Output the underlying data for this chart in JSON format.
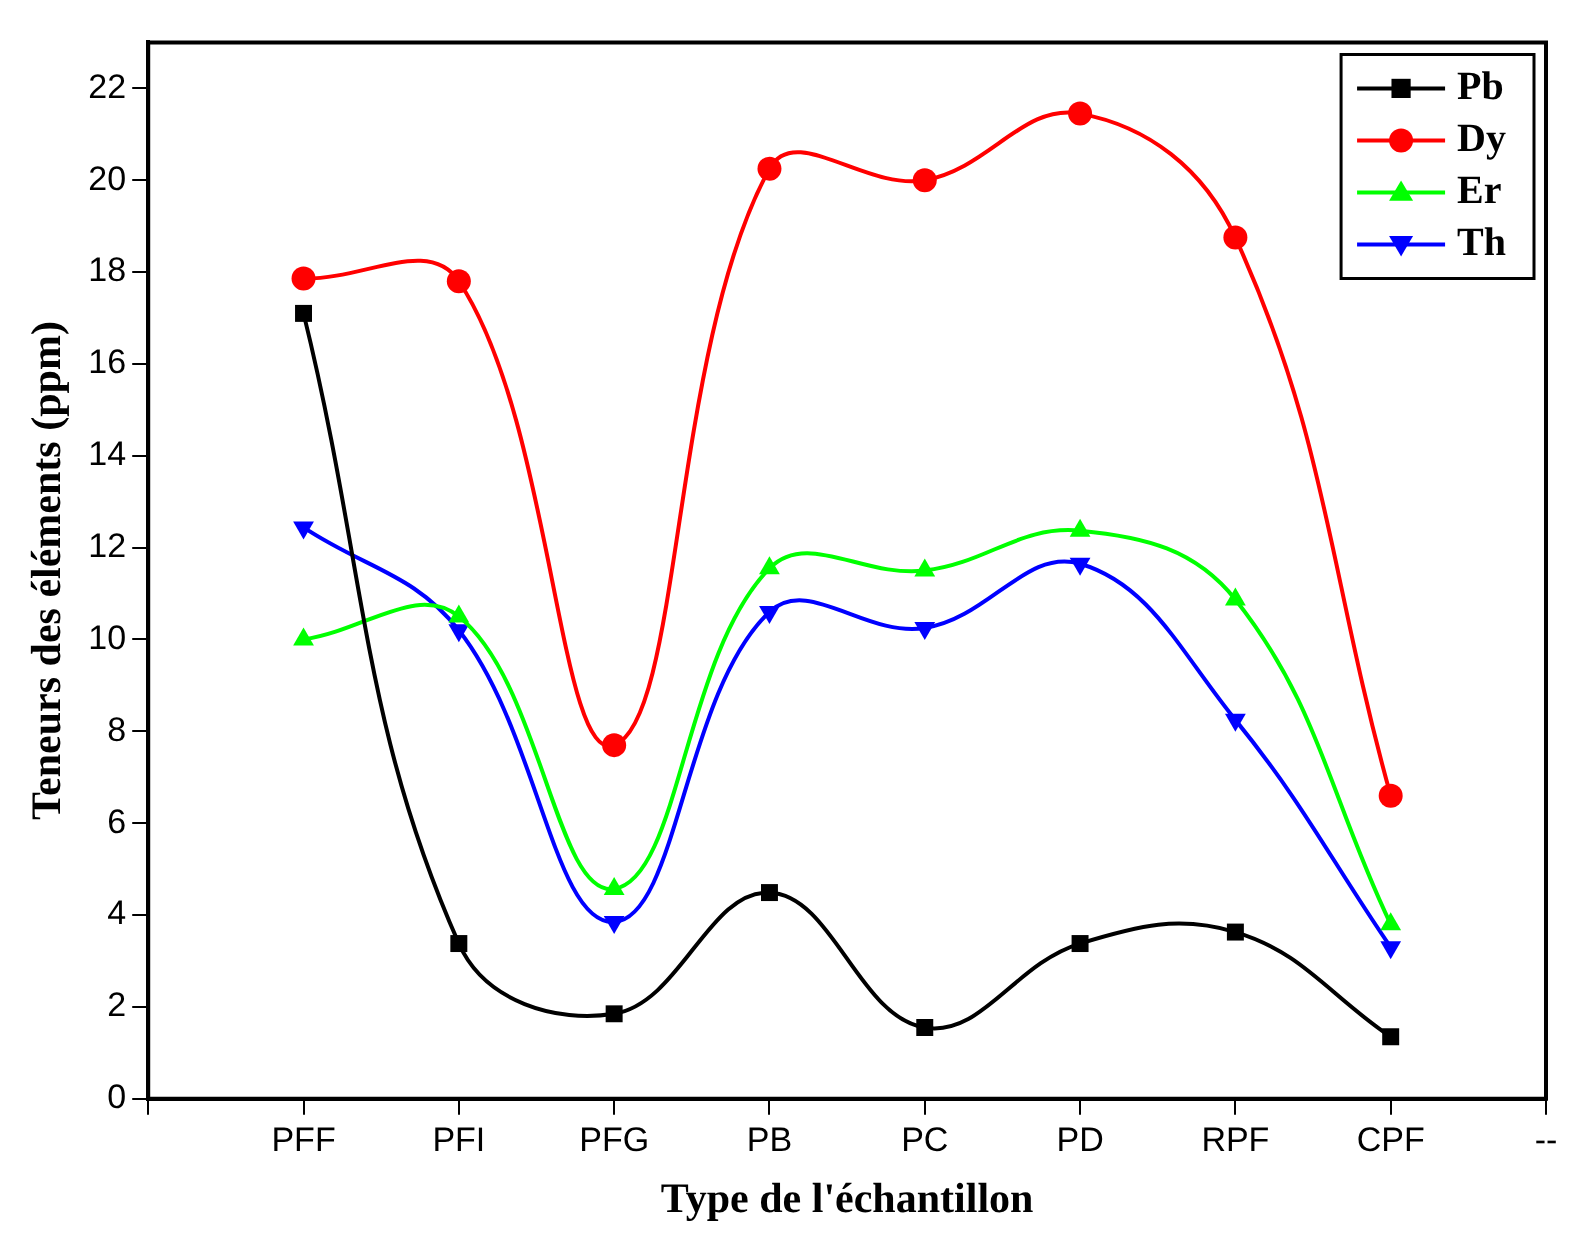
{
  "chart_data": {
    "type": "line",
    "xlabel": "Type de l'échantillon",
    "ylabel": "Teneurs des éléments (ppm)",
    "categories": [
      null,
      "PFF",
      "PFI",
      "PFG",
      "PB",
      "PC",
      "PD",
      "RPF",
      "CPF",
      "--"
    ],
    "series": [
      {
        "name": "Pb",
        "color": "#000000",
        "marker": "square",
        "values": [
          null,
          17.1,
          3.38,
          1.85,
          4.49,
          1.55,
          3.38,
          3.63,
          1.35,
          null
        ]
      },
      {
        "name": "Dy",
        "color": "#ff0000",
        "marker": "circle",
        "values": [
          null,
          17.86,
          17.8,
          7.7,
          20.25,
          20.0,
          21.45,
          18.75,
          6.6,
          null
        ]
      },
      {
        "name": "Er",
        "color": "#00ff00",
        "marker": "triangle",
        "values": [
          null,
          10.0,
          10.5,
          4.57,
          11.55,
          11.5,
          12.37,
          10.87,
          3.8,
          null
        ]
      },
      {
        "name": "Th",
        "color": "#0000ff",
        "marker": "triangle-down",
        "values": [
          null,
          12.44,
          10.2,
          3.85,
          10.6,
          10.25,
          11.65,
          8.25,
          3.3,
          null
        ]
      }
    ],
    "ylim": [
      0,
      23
    ],
    "yticks": [
      0,
      2,
      4,
      6,
      8,
      10,
      12,
      14,
      16,
      18,
      20,
      22
    ],
    "grid": false,
    "legend": "top right",
    "line_style": "solid"
  }
}
